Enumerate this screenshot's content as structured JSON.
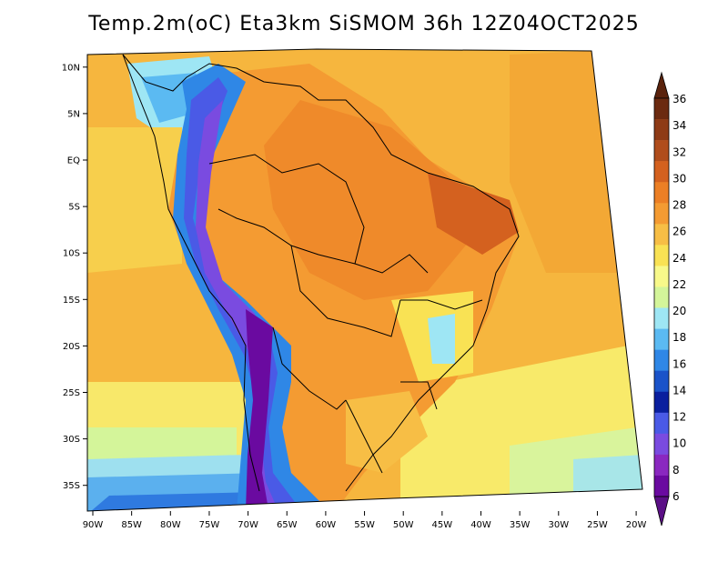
{
  "title": "Temp.2m(oC) Eta3km SiSMOM 36h 12Z04OCT2025",
  "map": {
    "lat_labels": [
      "10N",
      "5N",
      "EQ",
      "5S",
      "10S",
      "15S",
      "20S",
      "25S",
      "30S",
      "35S"
    ],
    "lat_values": [
      10,
      5,
      0,
      -5,
      -10,
      -15,
      -20,
      -25,
      -30,
      -35
    ],
    "lon_labels": [
      "90W",
      "85W",
      "80W",
      "75W",
      "70W",
      "65W",
      "60W",
      "55W",
      "50W",
      "45W",
      "40W",
      "35W",
      "30W",
      "25W",
      "20W"
    ],
    "lon_values": [
      -90,
      -85,
      -80,
      -75,
      -70,
      -65,
      -60,
      -55,
      -50,
      -45,
      -40,
      -35,
      -30,
      -25,
      -20
    ],
    "variable": "2m temperature",
    "units": "oC"
  },
  "colorbar": {
    "labels": [
      "36",
      "34",
      "32",
      "30",
      "28",
      "26",
      "24",
      "22",
      "20",
      "18",
      "16",
      "14",
      "12",
      "10",
      "8",
      "6"
    ],
    "colors_top_to_bottom": [
      "#6b2a10",
      "#8e3b16",
      "#b04d1c",
      "#d4611f",
      "#ec7f25",
      "#f49b32",
      "#f7be45",
      "#f9e254",
      "#f8f98a",
      "#d4f59a",
      "#9ee6f4",
      "#5bbaf2",
      "#2f87e6",
      "#1a53c9",
      "#0a1f9e",
      "#4a5ae6",
      "#7a4be0",
      "#8a28c0",
      "#6a0aa0"
    ],
    "top_triangle_color": "#5a220c",
    "bottom_triangle_color": "#5b0f86"
  }
}
